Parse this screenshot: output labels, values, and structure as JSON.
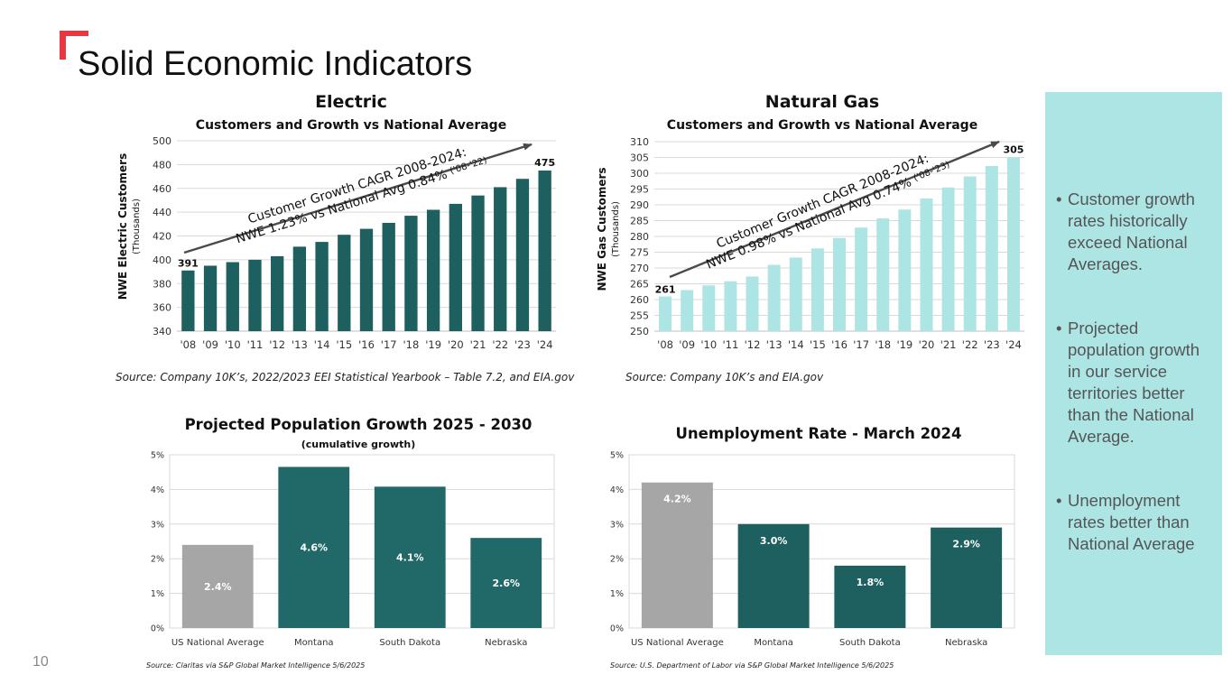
{
  "slide": {
    "title": "Solid Economic Indicators",
    "page_number": "10",
    "accent_color": "#e8373f",
    "panel_color": "#ade5e5",
    "bullets": [
      "Customer growth rates historically exceed National Averages.",
      "Projected population growth in our service territories better than the National Average.",
      "Unemployment rates better than National Average"
    ]
  },
  "chart_data": [
    {
      "id": "electric",
      "type": "bar",
      "title": "Electric",
      "subtitle": "Customers and Growth vs National Average",
      "ylabel": "NWE Electric Customers",
      "ylabel_unit": "(Thousands)",
      "xlabel": "",
      "categories": [
        "'08",
        "'09",
        "'10",
        "'11",
        "'12",
        "'13",
        "'14",
        "'15",
        "'16",
        "'17",
        "'18",
        "'19",
        "'20",
        "'21",
        "'22",
        "'23",
        "'24"
      ],
      "values": [
        391,
        395,
        398,
        400,
        403,
        411,
        415,
        421,
        426,
        431,
        437,
        442,
        447,
        454,
        461,
        468,
        475
      ],
      "data_labels": {
        "first": "391",
        "last": "475"
      },
      "ylim": [
        340,
        500
      ],
      "yticks": [
        "340",
        "360",
        "380",
        "400",
        "420",
        "440",
        "460",
        "480",
        "500"
      ],
      "grid": true,
      "bar_color": "#1e6060",
      "annotation": [
        "Customer Growth CAGR 2008-2024:",
        "NWE 1.23% vs National Avg 0.84%",
        "('08-'22)"
      ],
      "source": "Source: Company 10K’s, 2022/2023 EEI Statistical Yearbook – Table 7.2, and EIA.gov"
    },
    {
      "id": "gas",
      "type": "bar",
      "title": "Natural Gas",
      "subtitle": "Customers and Growth vs National Average",
      "ylabel": "NWE Gas Customers",
      "ylabel_unit": "(Thousands)",
      "xlabel": "",
      "categories": [
        "'08",
        "'09",
        "'10",
        "'11",
        "'12",
        "'13",
        "'14",
        "'15",
        "'16",
        "'17",
        "'18",
        "'19",
        "'20",
        "'21",
        "'22",
        "'23",
        "'24"
      ],
      "values": [
        261,
        263,
        264.5,
        265.8,
        267.3,
        271,
        273.3,
        276.2,
        279.5,
        282.8,
        285.7,
        288.5,
        292,
        295.5,
        299,
        302.3,
        305
      ],
      "data_labels": {
        "first": "261",
        "last": "305"
      },
      "ylim": [
        250,
        310
      ],
      "yticks": [
        "250",
        "255",
        "260",
        "265",
        "270",
        "275",
        "280",
        "285",
        "290",
        "295",
        "300",
        "305",
        "310"
      ],
      "grid": true,
      "bar_color": "#ade5e5",
      "annotation": [
        "Customer Growth CAGR 2008-2024:",
        "NWE 0.98% vs National Avg 0.74%",
        "('08-'23)"
      ],
      "source": "Source: Company 10K’s and EIA.gov"
    },
    {
      "id": "population",
      "type": "bar",
      "title": "Projected Population Growth 2025 - 2030",
      "subtitle": "(cumulative growth)",
      "xlabel": "",
      "ylabel": "",
      "categories": [
        "US National Average",
        "Montana",
        "South Dakota",
        "Nebraska"
      ],
      "values": [
        2.4,
        4.65,
        4.08,
        2.6
      ],
      "value_labels": [
        "2.4%",
        "4.6%",
        "4.1%",
        "2.6%"
      ],
      "colors": [
        "#a6a6a6",
        "#216868",
        "#216868",
        "#216868"
      ],
      "ylim": [
        0,
        5
      ],
      "yticks": [
        "0%",
        "1%",
        "2%",
        "3%",
        "4%",
        "5%"
      ],
      "grid": true,
      "source": "Source: Claritas via S&P Global Market Intelligence 5/6/2025"
    },
    {
      "id": "unemployment",
      "type": "bar",
      "title": "Unemployment Rate - March 2024",
      "subtitle": "",
      "xlabel": "",
      "ylabel": "",
      "categories": [
        "US National Average",
        "Montana",
        "South Dakota",
        "Nebraska"
      ],
      "values": [
        4.2,
        3.0,
        1.8,
        2.9
      ],
      "value_labels": [
        "4.2%",
        "3.0%",
        "1.8%",
        "2.9%"
      ],
      "colors": [
        "#a6a6a6",
        "#1e6060",
        "#1e6060",
        "#1e6060"
      ],
      "ylim": [
        0,
        5
      ],
      "yticks": [
        "0%",
        "1%",
        "2%",
        "3%",
        "4%",
        "5%"
      ],
      "grid": true,
      "source": "Source: U.S. Department of Labor via S&P Global Market Intelligence 5/6/2025"
    }
  ]
}
